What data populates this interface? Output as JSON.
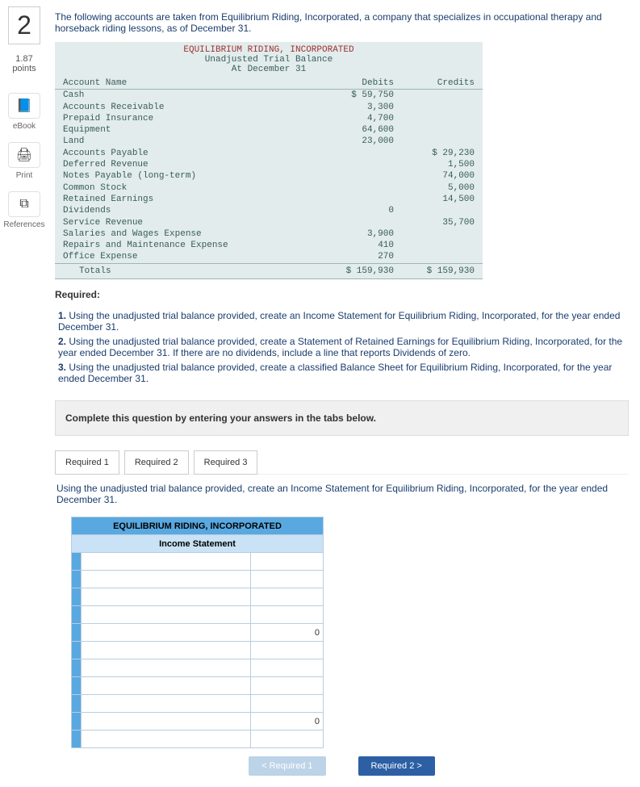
{
  "question": {
    "number": "2",
    "points_value": "1.87",
    "points_label": "points"
  },
  "sidebar": {
    "ebook": {
      "icon": "📘",
      "label": "eBook"
    },
    "print": {
      "icon": "🖨",
      "label": "Print"
    },
    "references": {
      "icon": "⧉",
      "label": "References"
    }
  },
  "intro": "The following accounts are taken from Equilibrium Riding, Incorporated, a company that specializes in occupational therapy and horseback riding lessons, as of December 31.",
  "trial_balance": {
    "company": "EQUILIBRIUM RIDING, INCORPORATED",
    "title": "Unadjusted Trial Balance",
    "date": "At December 31",
    "col_name": "Account Name",
    "col_debit": "Debits",
    "col_credit": "Credits",
    "rows": [
      {
        "name": "Cash",
        "debit": "$ 59,750",
        "credit": ""
      },
      {
        "name": "Accounts Receivable",
        "debit": "3,300",
        "credit": ""
      },
      {
        "name": "Prepaid Insurance",
        "debit": "4,700",
        "credit": ""
      },
      {
        "name": "Equipment",
        "debit": "64,600",
        "credit": ""
      },
      {
        "name": "Land",
        "debit": "23,000",
        "credit": ""
      },
      {
        "name": "Accounts Payable",
        "debit": "",
        "credit": "$ 29,230"
      },
      {
        "name": "Deferred Revenue",
        "debit": "",
        "credit": "1,500"
      },
      {
        "name": "Notes Payable (long-term)",
        "debit": "",
        "credit": "74,000"
      },
      {
        "name": "Common Stock",
        "debit": "",
        "credit": "5,000"
      },
      {
        "name": "Retained Earnings",
        "debit": "",
        "credit": "14,500"
      },
      {
        "name": "Dividends",
        "debit": "0",
        "credit": ""
      },
      {
        "name": "Service Revenue",
        "debit": "",
        "credit": "35,700"
      },
      {
        "name": "Salaries and Wages Expense",
        "debit": "3,900",
        "credit": ""
      },
      {
        "name": "Repairs and Maintenance Expense",
        "debit": "410",
        "credit": ""
      },
      {
        "name": "Office Expense",
        "debit": "270",
        "credit": ""
      }
    ],
    "totals": {
      "label": "Totals",
      "debit": "$ 159,930",
      "credit": "$ 159,930"
    }
  },
  "required": {
    "heading": "Required:",
    "items": [
      "Using the unadjusted trial balance provided, create an Income Statement for Equilibrium Riding, Incorporated, for the year ended December 31.",
      "Using the unadjusted trial balance provided, create a Statement of Retained Earnings for Equilibrium Riding, Incorporated, for the year ended December 31. If there are no dividends, include a line that reports Dividends of zero.",
      "Using the unadjusted trial balance provided, create a classified Balance Sheet for Equilibrium Riding, Incorporated, for the year ended December 31."
    ]
  },
  "tabs": {
    "complete_instruction": "Complete this question by entering your answers in the tabs below.",
    "tab1": "Required 1",
    "tab2": "Required 2",
    "tab3": "Required 3",
    "description": "Using the unadjusted trial balance provided, create an Income Statement for Equilibrium Riding, Incorporated, for the year ended December 31."
  },
  "answer": {
    "header": "EQUILIBRIUM RIDING, INCORPORATED",
    "subheader": "Income Statement",
    "zero": "0"
  },
  "nav": {
    "prev": "<  Required 1",
    "next": "Required 2  >"
  },
  "colors": {
    "accent_blue": "#5aa8e0",
    "dark_blue": "#2d5fa4",
    "tb_bg": "#e2ecec"
  }
}
